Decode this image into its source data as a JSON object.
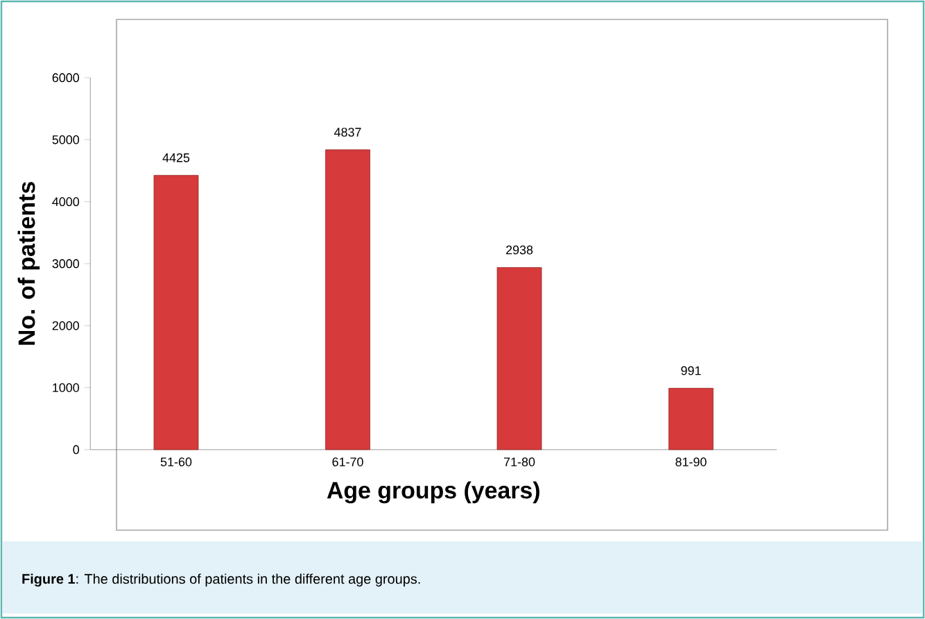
{
  "chart_data": {
    "type": "bar",
    "categories": [
      "51-60",
      "61-70",
      "71-80",
      "81-90"
    ],
    "values": [
      4425,
      4837,
      2938,
      991
    ],
    "color": "#d63a3a",
    "xlabel": "Age groups (years)",
    "ylabel": "No. of patients",
    "ylim": [
      0,
      6000
    ],
    "yticks": [
      0,
      1000,
      2000,
      3000,
      4000,
      5000,
      6000
    ],
    "data_labels": true,
    "annotations": [
      "**Figure 1**: The distributions of patients in the different age groups."
    ]
  }
}
